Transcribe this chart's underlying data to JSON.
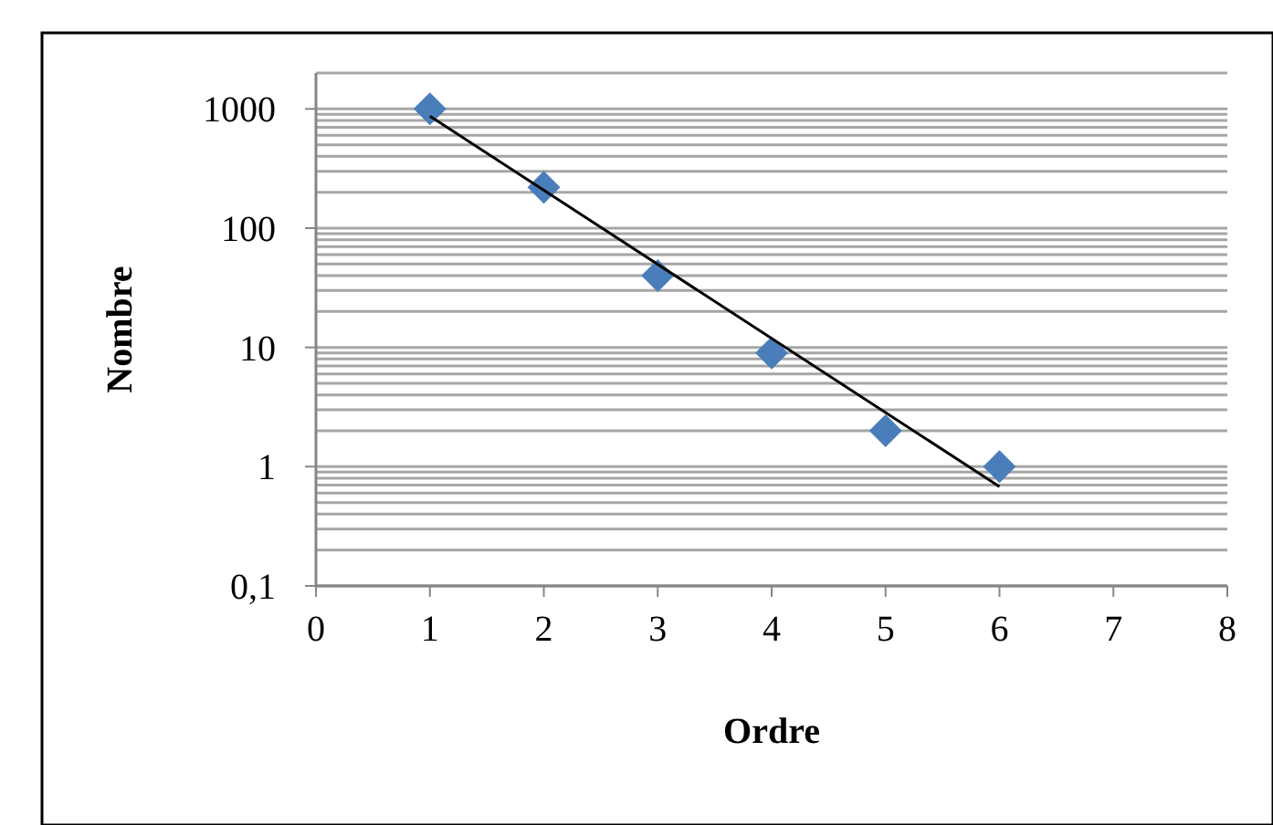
{
  "chart_data": {
    "type": "scatter",
    "xlabel": "Ordre",
    "ylabel": "Nombre",
    "log": "y",
    "grid": "y",
    "marker": "diamond",
    "xlim": [
      0,
      8
    ],
    "xticks": [
      0,
      1,
      2,
      3,
      4,
      5,
      6,
      7,
      8
    ],
    "ylim": [
      0.1,
      2000
    ],
    "yticks": [
      {
        "value": 0.1,
        "label": "0,1"
      },
      1,
      10,
      100,
      1000
    ],
    "series": [
      {
        "color": "#4a7ebb",
        "x": [
          1,
          2,
          3,
          4,
          5,
          6
        ],
        "values": [
          1000,
          220,
          40,
          9,
          2,
          1
        ]
      },
      {
        "type": "line",
        "color": "#000000",
        "marker": "none",
        "line_style": "solid",
        "x": [
          1,
          6
        ],
        "values": [
          870,
          0.68
        ]
      }
    ]
  }
}
